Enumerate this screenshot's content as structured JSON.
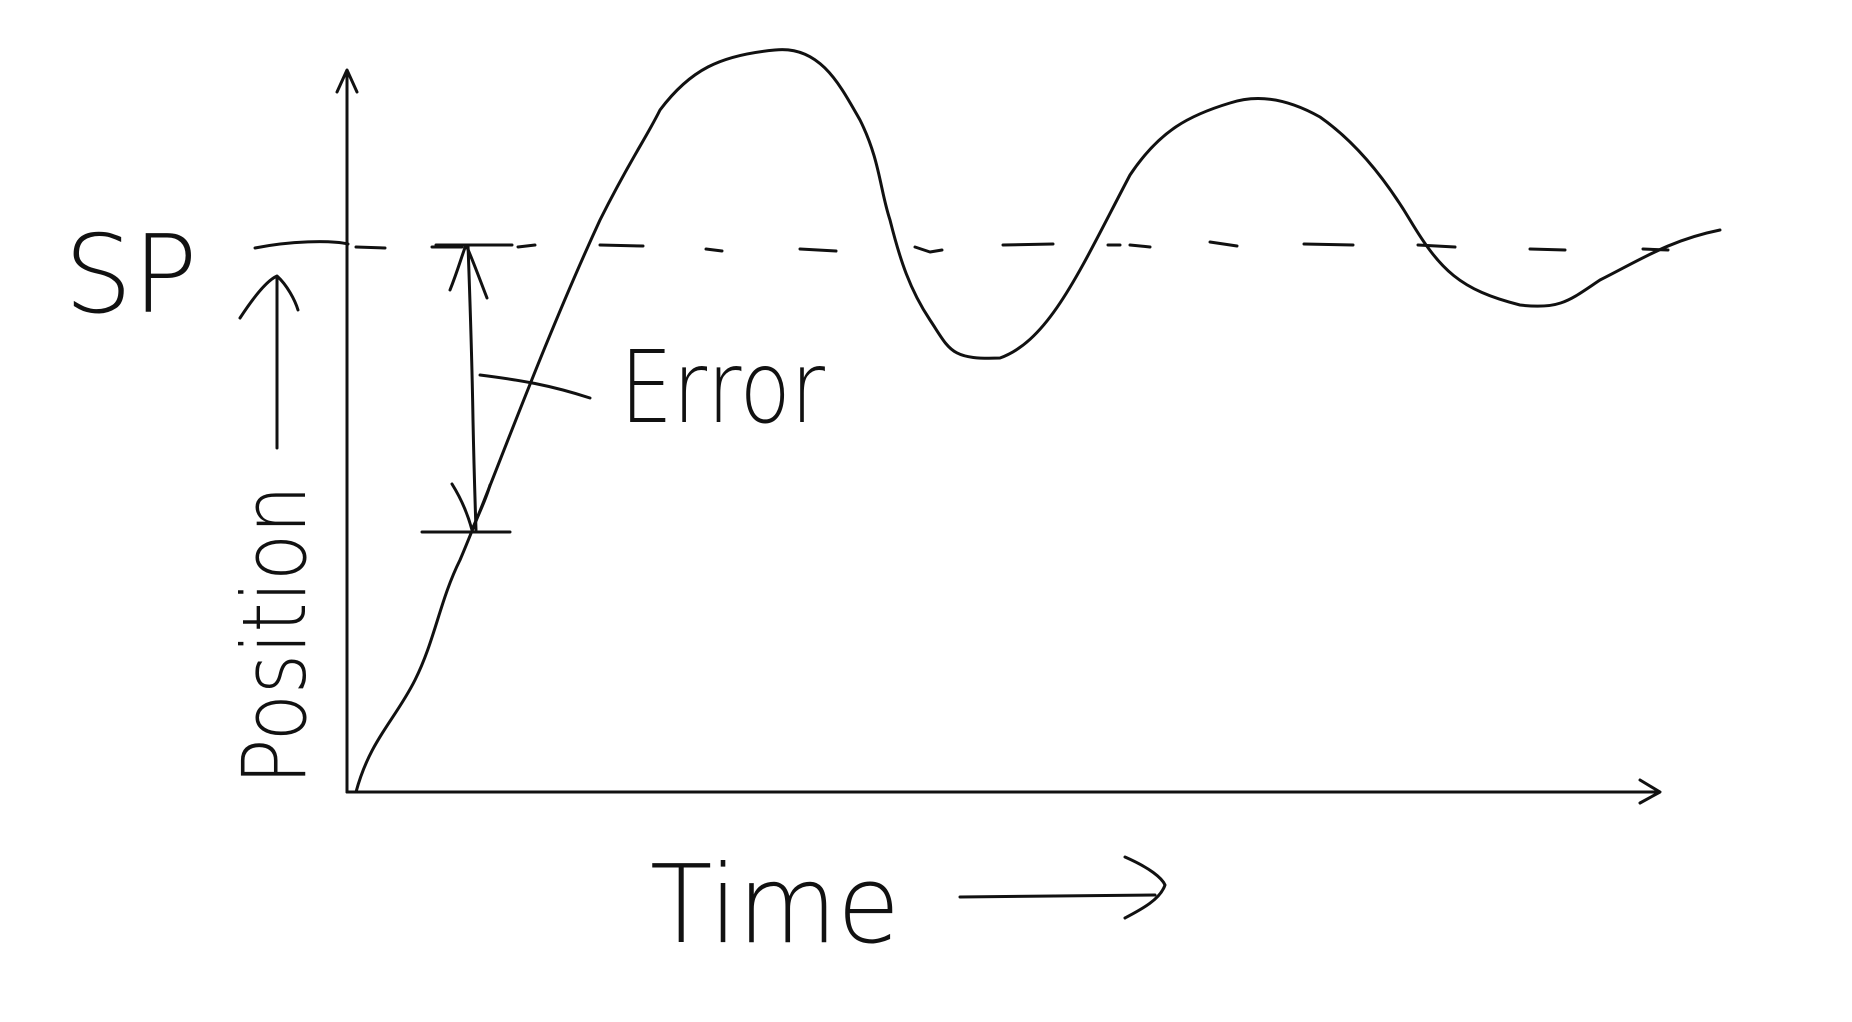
{
  "labels": {
    "setpoint": "SP",
    "y_axis": "Position",
    "x_axis": "Time",
    "error": "Error"
  },
  "colors": {
    "ink": "#111111",
    "background": "#ffffff"
  }
}
